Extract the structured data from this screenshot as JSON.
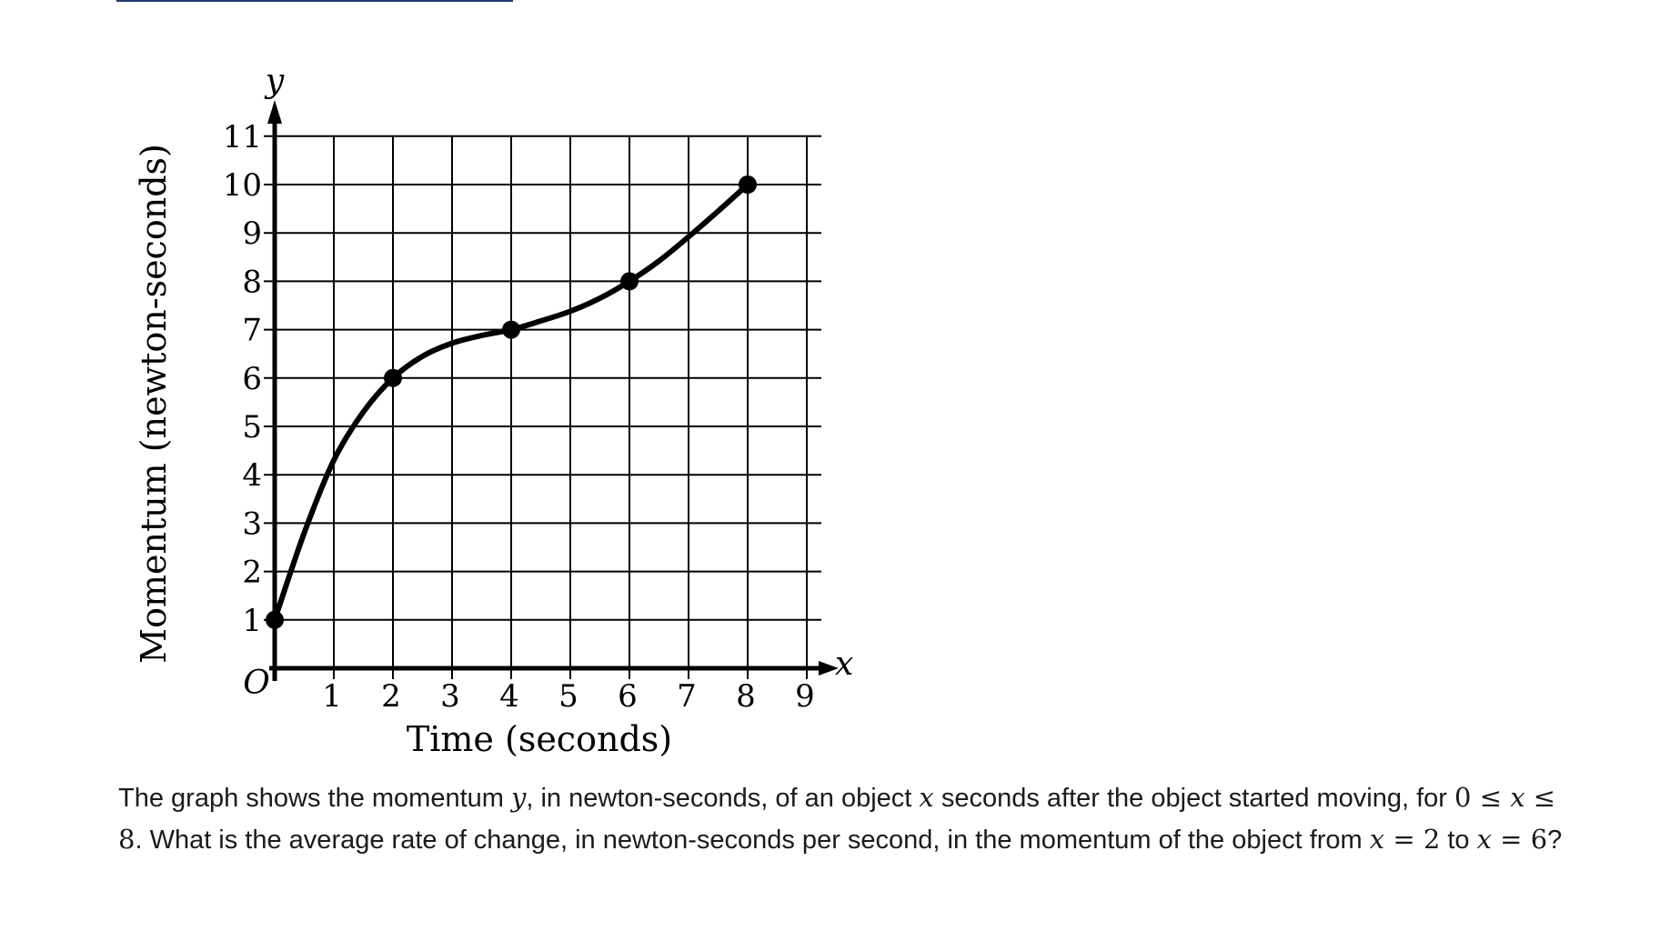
{
  "chart_data": {
    "type": "line",
    "title": "",
    "xlabel": "Time (seconds)",
    "ylabel": "Momentum (newton-seconds)",
    "x_var": "x",
    "y_var": "y",
    "origin_label": "O",
    "xlim": [
      0,
      9
    ],
    "ylim": [
      0,
      11
    ],
    "x_ticks": [
      "1",
      "2",
      "3",
      "4",
      "5",
      "6",
      "7",
      "8",
      "9"
    ],
    "y_ticks": [
      "1",
      "2",
      "3",
      "4",
      "5",
      "6",
      "7",
      "8",
      "9",
      "10",
      "11"
    ],
    "grid": true,
    "marked_points": [
      {
        "x": 0,
        "y": 1
      },
      {
        "x": 2,
        "y": 6
      },
      {
        "x": 4,
        "y": 7
      },
      {
        "x": 6,
        "y": 8
      },
      {
        "x": 8,
        "y": 10
      }
    ],
    "curve": [
      [
        0,
        1
      ],
      [
        0.5,
        2.8
      ],
      [
        1,
        4.3
      ],
      [
        1.5,
        5.3
      ],
      [
        2,
        6
      ],
      [
        2.5,
        6.45
      ],
      [
        3,
        6.72
      ],
      [
        3.5,
        6.88
      ],
      [
        4,
        7
      ],
      [
        4.5,
        7.18
      ],
      [
        5,
        7.38
      ],
      [
        5.5,
        7.65
      ],
      [
        6,
        8
      ],
      [
        6.5,
        8.42
      ],
      [
        7,
        8.92
      ],
      [
        7.5,
        9.45
      ],
      [
        8,
        10
      ]
    ]
  },
  "question": {
    "p1": "The graph shows the momentum ",
    "v_y": "y",
    "p2": ", in newton-seconds, of an object ",
    "v_x1": "x",
    "p3": " seconds after the object started moving, for ",
    "ineq_a": "0 ≤ ",
    "ineq_x": "x",
    "ineq_b": " ≤ 8",
    "p4": ". What is the average rate of change, in newton-seconds per second, in the momentum of the object from ",
    "v_x2": "x",
    "eq1": " = 2",
    "p5": " to ",
    "v_x3": "x",
    "eq2": " = 6",
    "p6": "?"
  }
}
